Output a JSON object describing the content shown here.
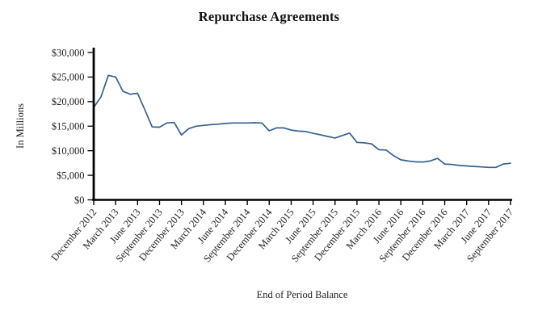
{
  "chart_data": {
    "type": "line",
    "title": "Repurchase Agreements",
    "ylabel": "In Millions",
    "xlabel": "End of Period Balance",
    "x": [
      "December 2012",
      "January 2013",
      "February 2013",
      "March 2013",
      "April 2013",
      "May 2013",
      "June 2013",
      "July 2013",
      "August 2013",
      "September 2013",
      "October 2013",
      "November 2013",
      "December 2013",
      "January 2014",
      "February 2014",
      "March 2014",
      "April 2014",
      "May 2014",
      "June 2014",
      "July 2014",
      "August 2014",
      "September 2014",
      "October 2014",
      "November 2014",
      "December 2014",
      "January 2015",
      "February 2015",
      "March 2015",
      "April 2015",
      "May 2015",
      "June 2015",
      "July 2015",
      "August 2015",
      "September 2015",
      "October 2015",
      "November 2015",
      "December 2015",
      "January 2016",
      "February 2016",
      "March 2016",
      "April 2016",
      "May 2016",
      "June 2016",
      "July 2016",
      "August 2016",
      "September 2016",
      "October 2016",
      "November 2016",
      "December 2016",
      "January 2017",
      "February 2017",
      "March 2017",
      "April 2017",
      "May 2017",
      "June 2017",
      "July 2017",
      "August 2017",
      "September 2017"
    ],
    "values": [
      18800,
      21000,
      25350,
      25000,
      22100,
      21500,
      21700,
      18300,
      14850,
      14800,
      15650,
      15750,
      13200,
      14500,
      15000,
      15150,
      15300,
      15400,
      15550,
      15650,
      15650,
      15650,
      15700,
      15650,
      14050,
      14650,
      14650,
      14200,
      14000,
      13900,
      13550,
      13250,
      12900,
      12600,
      13100,
      13600,
      11700,
      11600,
      11400,
      10200,
      10150,
      9000,
      8150,
      7900,
      7750,
      7700,
      7900,
      8450,
      7300,
      7200,
      7000,
      6900,
      6800,
      6700,
      6600,
      6600,
      7300,
      7450
    ],
    "x_tick_labels": [
      "December 2012",
      "March 2013",
      "June 2013",
      "September 2013",
      "December 2013",
      "March 2014",
      "June 2014",
      "September 2014",
      "December 2014",
      "March 2015",
      "June 2015",
      "September 2015",
      "December 2015",
      "March 2016",
      "June 2016",
      "September 2016",
      "December 2016",
      "March 2017",
      "June 2017",
      "September 2017"
    ],
    "x_tick_every": 3,
    "y_ticks": [
      0,
      5000,
      10000,
      15000,
      20000,
      25000,
      30000
    ],
    "y_tick_labels": [
      "$0",
      "$5,000",
      "$10,000",
      "$15,000",
      "$20,000",
      "$25,000",
      "$30,000"
    ],
    "ylim": [
      0,
      30000
    ],
    "grid": false,
    "legend": null,
    "line_color": "#36618E",
    "axis_color": "#000000",
    "text_color": "#222222"
  }
}
